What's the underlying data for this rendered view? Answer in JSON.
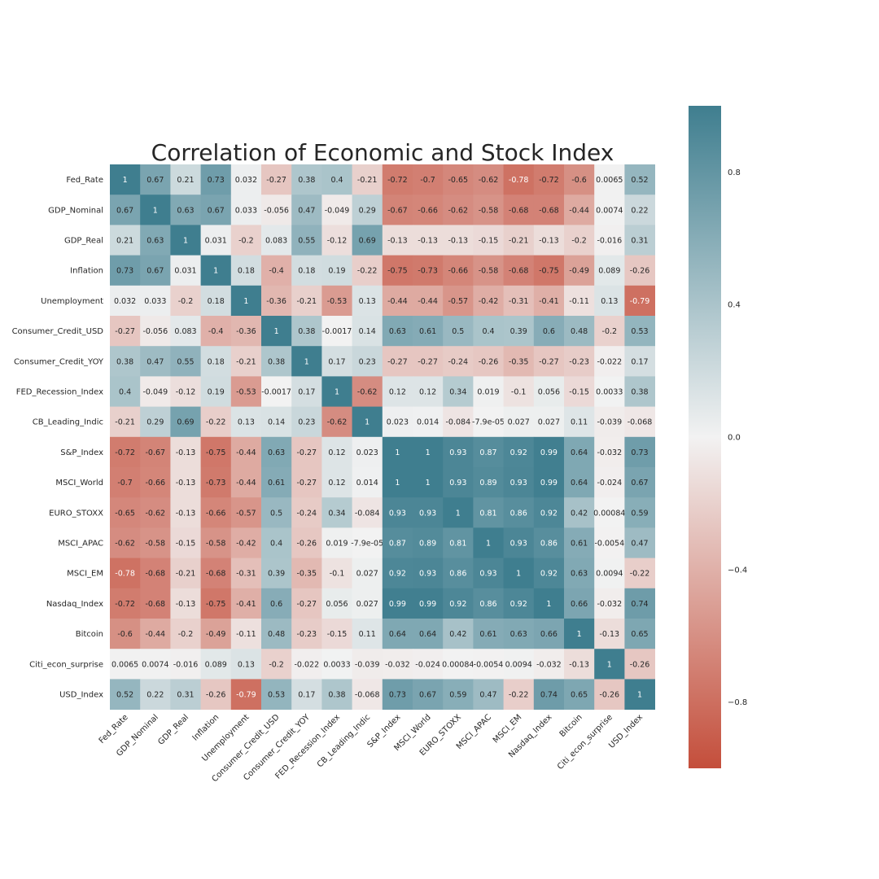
{
  "chart_data": {
    "type": "heatmap",
    "title": "Correlation of Economic and Stock Index",
    "labels": [
      "Fed_Rate",
      "GDP_Nominal",
      "GDP_Real",
      "Inflation",
      "Unemployment",
      "Consumer_Credit_USD",
      "Consumer_Credit_YOY",
      "FED_Recession_Index",
      "CB_Leading_Indic",
      "S&P_Index",
      "MSCI_World",
      "EURO_STOXX",
      "MSCI_APAC",
      "MSCI_EM",
      "Nasdaq_Index",
      "Bitcoin",
      "Citi_econ_surprise",
      "USD_Index"
    ],
    "matrix": [
      [
        "1",
        "0.67",
        "0.21",
        "0.73",
        "0.032",
        "-0.27",
        "0.38",
        "0.4",
        "-0.21",
        "-0.72",
        "-0.7",
        "-0.65",
        "-0.62",
        "-0.78",
        "-0.72",
        "-0.6",
        "0.0065",
        "0.52"
      ],
      [
        "0.67",
        "1",
        "0.63",
        "0.67",
        "0.033",
        "-0.056",
        "0.47",
        "-0.049",
        "0.29",
        "-0.67",
        "-0.66",
        "-0.62",
        "-0.58",
        "-0.68",
        "-0.68",
        "-0.44",
        "0.0074",
        "0.22"
      ],
      [
        "0.21",
        "0.63",
        "1",
        "0.031",
        "-0.2",
        "0.083",
        "0.55",
        "-0.12",
        "0.69",
        "-0.13",
        "-0.13",
        "-0.13",
        "-0.15",
        "-0.21",
        "-0.13",
        "-0.2",
        "-0.016",
        "0.31"
      ],
      [
        "0.73",
        "0.67",
        "0.031",
        "1",
        "0.18",
        "-0.4",
        "0.18",
        "0.19",
        "-0.22",
        "-0.75",
        "-0.73",
        "-0.66",
        "-0.58",
        "-0.68",
        "-0.75",
        "-0.49",
        "0.089",
        "-0.26"
      ],
      [
        "0.032",
        "0.033",
        "-0.2",
        "0.18",
        "1",
        "-0.36",
        "-0.21",
        "-0.53",
        "0.13",
        "-0.44",
        "-0.44",
        "-0.57",
        "-0.42",
        "-0.31",
        "-0.41",
        "-0.11",
        "0.13",
        "-0.79"
      ],
      [
        "-0.27",
        "-0.056",
        "0.083",
        "-0.4",
        "-0.36",
        "1",
        "0.38",
        "-0.0017",
        "0.14",
        "0.63",
        "0.61",
        "0.5",
        "0.4",
        "0.39",
        "0.6",
        "0.48",
        "-0.2",
        "0.53"
      ],
      [
        "0.38",
        "0.47",
        "0.55",
        "0.18",
        "-0.21",
        "0.38",
        "1",
        "0.17",
        "0.23",
        "-0.27",
        "-0.27",
        "-0.24",
        "-0.26",
        "-0.35",
        "-0.27",
        "-0.23",
        "-0.022",
        "0.17"
      ],
      [
        "0.4",
        "-0.049",
        "-0.12",
        "0.19",
        "-0.53",
        "-0.0017",
        "0.17",
        "1",
        "-0.62",
        "0.12",
        "0.12",
        "0.34",
        "0.019",
        "-0.1",
        "0.056",
        "-0.15",
        "0.0033",
        "0.38"
      ],
      [
        "-0.21",
        "0.29",
        "0.69",
        "-0.22",
        "0.13",
        "0.14",
        "0.23",
        "-0.62",
        "1",
        "0.023",
        "0.014",
        "-0.084",
        "-7.9e-05",
        "0.027",
        "0.027",
        "0.11",
        "-0.039",
        "-0.068"
      ],
      [
        "-0.72",
        "-0.67",
        "-0.13",
        "-0.75",
        "-0.44",
        "0.63",
        "-0.27",
        "0.12",
        "0.023",
        "1",
        "1",
        "0.93",
        "0.87",
        "0.92",
        "0.99",
        "0.64",
        "-0.032",
        "0.73"
      ],
      [
        "-0.7",
        "-0.66",
        "-0.13",
        "-0.73",
        "-0.44",
        "0.61",
        "-0.27",
        "0.12",
        "0.014",
        "1",
        "1",
        "0.93",
        "0.89",
        "0.93",
        "0.99",
        "0.64",
        "-0.024",
        "0.67"
      ],
      [
        "-0.65",
        "-0.62",
        "-0.13",
        "-0.66",
        "-0.57",
        "0.5",
        "-0.24",
        "0.34",
        "-0.084",
        "0.93",
        "0.93",
        "1",
        "0.81",
        "0.86",
        "0.92",
        "0.42",
        "0.00084",
        "0.59"
      ],
      [
        "-0.62",
        "-0.58",
        "-0.15",
        "-0.58",
        "-0.42",
        "0.4",
        "-0.26",
        "0.019",
        "-7.9e-05",
        "0.87",
        "0.89",
        "0.81",
        "1",
        "0.93",
        "0.86",
        "0.61",
        "-0.0054",
        "0.47"
      ],
      [
        "-0.78",
        "-0.68",
        "-0.21",
        "-0.68",
        "-0.31",
        "0.39",
        "-0.35",
        "-0.1",
        "0.027",
        "0.92",
        "0.93",
        "0.86",
        "0.93",
        "1",
        "0.92",
        "0.63",
        "0.0094",
        "-0.22"
      ],
      [
        "-0.72",
        "-0.68",
        "-0.13",
        "-0.75",
        "-0.41",
        "0.6",
        "-0.27",
        "0.056",
        "0.027",
        "0.99",
        "0.99",
        "0.92",
        "0.86",
        "0.92",
        "1",
        "0.66",
        "-0.032",
        "0.74"
      ],
      [
        "-0.6",
        "-0.44",
        "-0.2",
        "-0.49",
        "-0.11",
        "0.48",
        "-0.23",
        "-0.15",
        "0.11",
        "0.64",
        "0.64",
        "0.42",
        "0.61",
        "0.63",
        "0.66",
        "1",
        "-0.13",
        "0.65"
      ],
      [
        "0.0065",
        "0.0074",
        "-0.016",
        "0.089",
        "0.13",
        "-0.2",
        "-0.022",
        "0.0033",
        "-0.039",
        "-0.032",
        "-0.024",
        "0.00084",
        "-0.0054",
        "0.0094",
        "-0.032",
        "-0.13",
        "1",
        "-0.26"
      ],
      [
        "0.52",
        "0.22",
        "0.31",
        "-0.26",
        "-0.79",
        "0.53",
        "0.17",
        "0.38",
        "-0.068",
        "0.73",
        "0.67",
        "0.59",
        "0.47",
        "-0.22",
        "0.74",
        "0.65",
        "-0.26",
        "1"
      ]
    ],
    "vmin": -1,
    "vmax": 1,
    "colorbar_ticks": [
      "0.8",
      "0.4",
      "0.0",
      "−0.4",
      "−0.8"
    ],
    "colors": {
      "negative": "#c44e3b",
      "center": "#f2f2f2",
      "positive": "#3f7e8f"
    }
  }
}
